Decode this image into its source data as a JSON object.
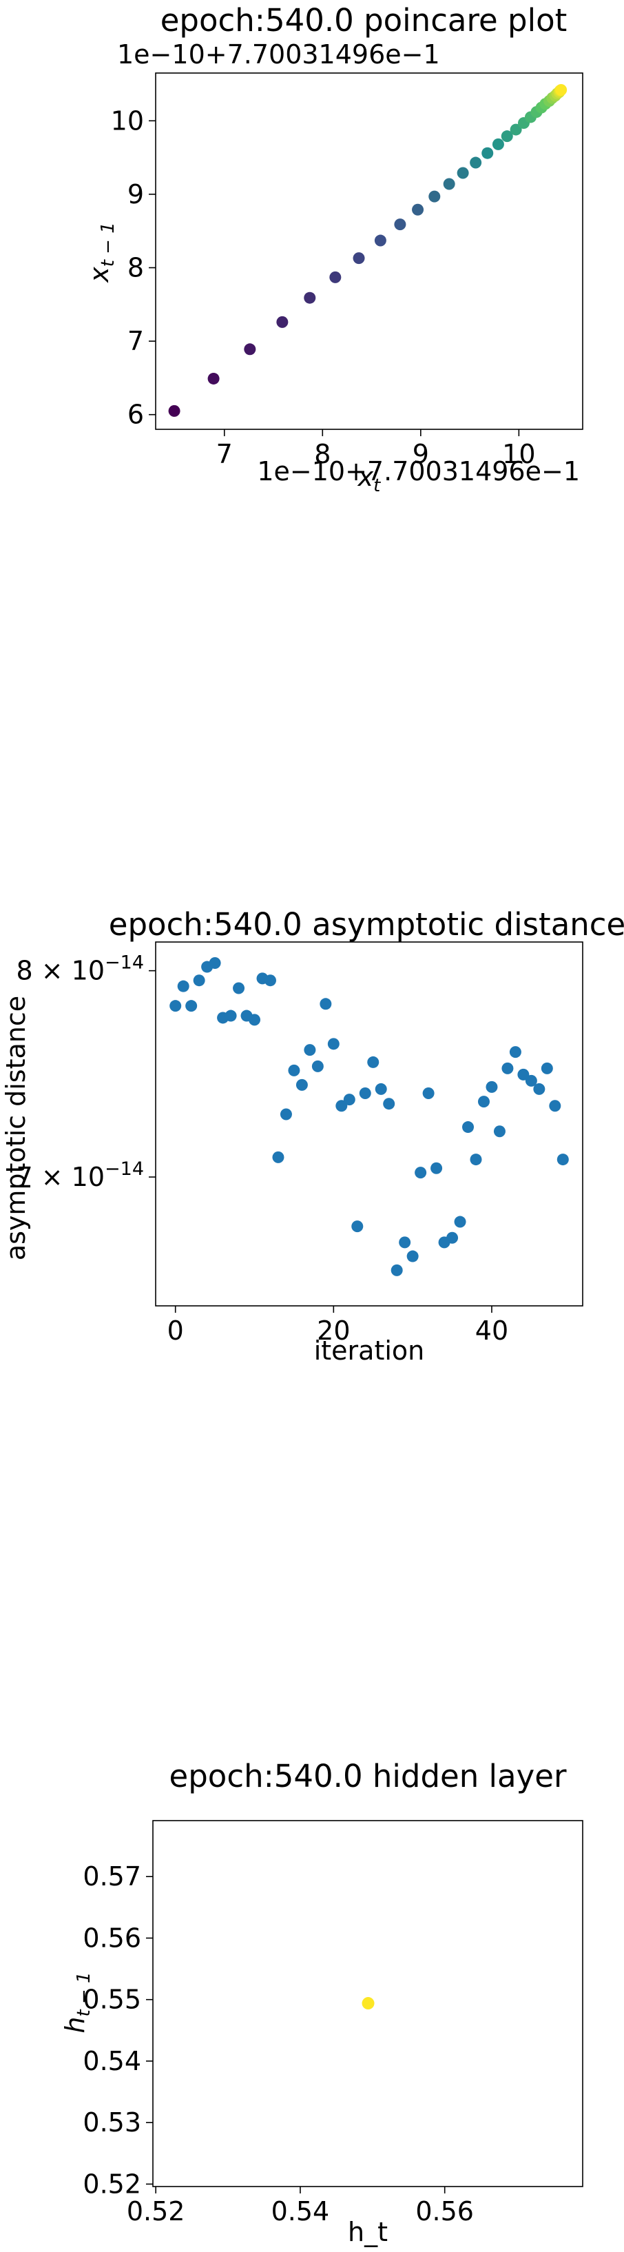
{
  "chart_data": [
    {
      "type": "scatter",
      "title": "epoch:540.0 poincare plot",
      "xlabel": "x_t",
      "ylabel": "x_{t-1}",
      "x_offset_text": "1e−10+7.70031496e−1",
      "y_offset_text": "1e−10+7.70031496e−1",
      "xlim": [
        6.3,
        10.65
      ],
      "ylim": [
        5.8,
        10.65
      ],
      "xticks": [
        7,
        8,
        9,
        10
      ],
      "yticks": [
        6,
        7,
        8,
        9,
        10
      ],
      "colormap": [
        "#440154",
        "#3b528b",
        "#21918c",
        "#5ec962",
        "#fde725"
      ],
      "x": [
        6.49,
        6.89,
        7.26,
        7.59,
        7.87,
        8.13,
        8.37,
        8.59,
        8.79,
        8.97,
        9.14,
        9.29,
        9.43,
        9.56,
        9.68,
        9.79,
        9.88,
        9.97,
        10.05,
        10.12,
        10.18,
        10.23,
        10.27,
        10.31,
        10.34,
        10.37,
        10.39,
        10.41,
        10.42,
        10.43
      ],
      "y": [
        6.05,
        6.49,
        6.89,
        7.26,
        7.59,
        7.87,
        8.13,
        8.37,
        8.59,
        8.79,
        8.97,
        9.14,
        9.29,
        9.43,
        9.56,
        9.68,
        9.79,
        9.88,
        9.97,
        10.05,
        10.12,
        10.18,
        10.23,
        10.27,
        10.31,
        10.34,
        10.37,
        10.39,
        10.41,
        10.42
      ]
    },
    {
      "type": "scatter",
      "title": "epoch:540.0 asymptotic distance",
      "xlabel": "iteration",
      "ylabel": "asymptotic distance",
      "yscale": "log",
      "xlim": [
        -2.5,
        51.5
      ],
      "ylim": [
        6.44e-14,
        8.15e-14
      ],
      "xticks": [
        0,
        20,
        40
      ],
      "yticks": [
        7e-14,
        8e-14
      ],
      "ytick_labels": [
        {
          "mant": "7",
          "times": "×",
          "base": "10",
          "exp": "−14"
        },
        {
          "mant": "8",
          "times": "×",
          "base": "10",
          "exp": "−14"
        }
      ],
      "color": "#1f77b4",
      "x": [
        0,
        1,
        2,
        3,
        4,
        5,
        6,
        7,
        8,
        9,
        10,
        11,
        12,
        13,
        14,
        15,
        16,
        17,
        18,
        19,
        20,
        21,
        22,
        23,
        24,
        25,
        26,
        27,
        28,
        29,
        30,
        31,
        32,
        33,
        34,
        35,
        36,
        37,
        38,
        39,
        40,
        41,
        42,
        43,
        44,
        45,
        46,
        47,
        48,
        49
      ],
      "y": [
        7.82e-14,
        7.92e-14,
        7.82e-14,
        7.95e-14,
        8.02e-14,
        8.04e-14,
        7.76e-14,
        7.77e-14,
        7.91e-14,
        7.77e-14,
        7.75e-14,
        7.96e-14,
        7.95e-14,
        7.09e-14,
        7.29e-14,
        7.5e-14,
        7.43e-14,
        7.6e-14,
        7.52e-14,
        7.83e-14,
        7.63e-14,
        7.33e-14,
        7.36e-14,
        6.78e-14,
        7.39e-14,
        7.54e-14,
        7.41e-14,
        7.34e-14,
        6.59e-14,
        6.71e-14,
        6.65e-14,
        7.02e-14,
        7.39e-14,
        7.04e-14,
        6.71e-14,
        6.73e-14,
        6.8e-14,
        7.23e-14,
        7.08e-14,
        7.35e-14,
        7.42e-14,
        7.21e-14,
        7.51e-14,
        7.59e-14,
        7.48e-14,
        7.45e-14,
        7.41e-14,
        7.51e-14,
        7.33e-14,
        7.08e-14
      ]
    },
    {
      "type": "scatter",
      "title": "epoch:540.0 hidden layer",
      "xlabel": "h_t",
      "ylabel": "h_{t-1}",
      "xlim": [
        0.5196,
        0.5791
      ],
      "ylim": [
        0.5196,
        0.5791
      ],
      "xticks": [
        0.52,
        0.54,
        0.56
      ],
      "yticks": [
        0.52,
        0.53,
        0.54,
        0.55,
        0.56,
        0.57
      ],
      "xtick_labels": [
        "0.52",
        "0.54",
        "0.56"
      ],
      "ytick_labels": [
        "0.52",
        "0.53",
        "0.54",
        "0.55",
        "0.56",
        "0.57"
      ],
      "color": "#fde725",
      "x": [
        0.5494
      ],
      "y": [
        0.5494
      ]
    }
  ]
}
